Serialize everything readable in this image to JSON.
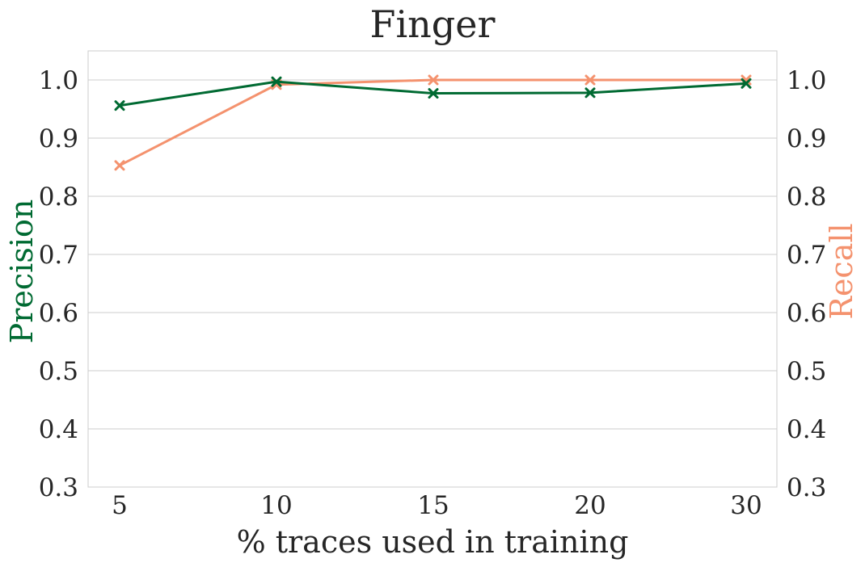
{
  "chart_data": {
    "type": "line",
    "title": "Finger",
    "xlabel": "% traces used in training",
    "ylabel_left": "Precision",
    "ylabel_right": "Recall",
    "categories": [
      "5",
      "10",
      "15",
      "20",
      "30"
    ],
    "ylim": [
      0.3,
      1.05
    ],
    "yticks": [
      "0.3",
      "0.4",
      "0.5",
      "0.6",
      "0.7",
      "0.8",
      "0.9",
      "1.0"
    ],
    "grid": "horizontal",
    "marker": "x",
    "series": [
      {
        "name": "Precision",
        "axis": "left",
        "color": "#006a32",
        "values": [
          0.956,
          0.997,
          0.977,
          0.978,
          0.994
        ]
      },
      {
        "name": "Recall",
        "axis": "right",
        "color": "#f4926e",
        "values": [
          0.853,
          0.992,
          1.0,
          1.0,
          1.0
        ]
      }
    ],
    "colors": {
      "axis_frame": "#cccccc",
      "grid": "#cccccc",
      "text": "#262626"
    }
  }
}
